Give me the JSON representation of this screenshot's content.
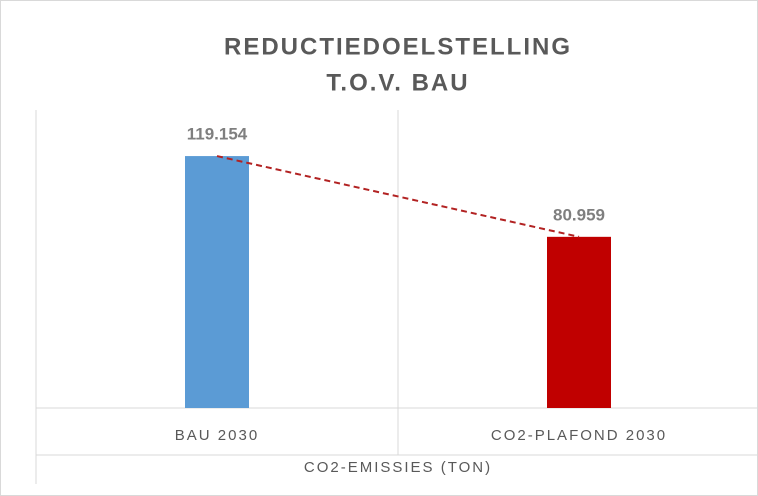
{
  "chart_data": {
    "type": "bar",
    "title": "REDUCTIEDOELSTELLING",
    "subtitle": "T.O.V. BAU",
    "x_label": "CO2-EMISSIES (TON)",
    "categories": [
      "BAU 2030",
      "CO2-PLAFOND 2030"
    ],
    "values": [
      119154,
      80959
    ],
    "value_labels": [
      "119.154",
      "80.959"
    ],
    "colors": [
      "#5b9bd5",
      "#c00000"
    ],
    "connector_color": "#b22222",
    "ylim": [
      0,
      140000
    ]
  }
}
